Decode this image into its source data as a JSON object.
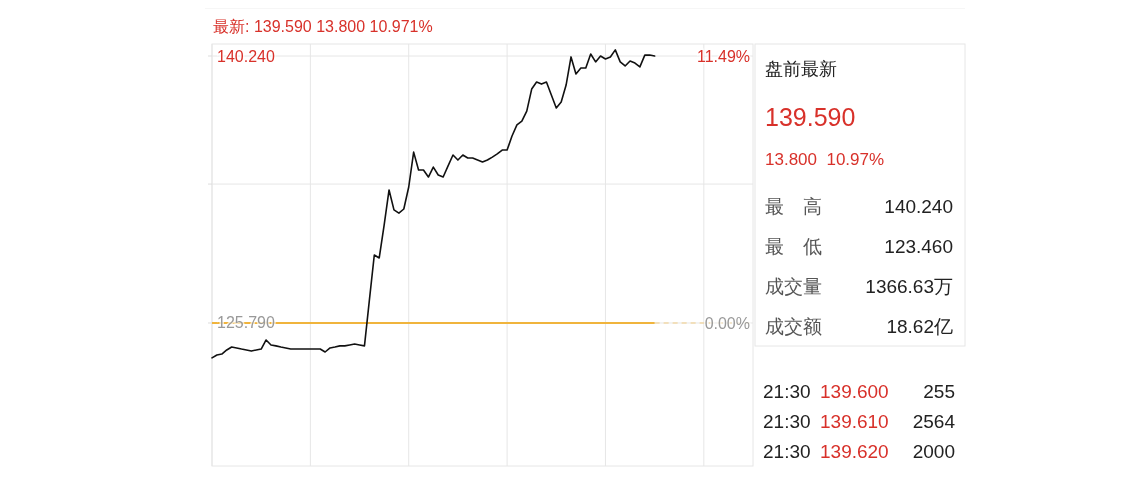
{
  "chart_data": [
    {
      "type": "line",
      "title": "最新: 139.590  13.800  10.971%",
      "categories": [
        null,
        null,
        null,
        null,
        null,
        null,
        null,
        null,
        null,
        null,
        null,
        null,
        null,
        null,
        null,
        null,
        null,
        null,
        null,
        null,
        null,
        null,
        null,
        null,
        null,
        null,
        null,
        null,
        null,
        null,
        null,
        null,
        null,
        null,
        null,
        null,
        null,
        null,
        null,
        null,
        null,
        null,
        null,
        null,
        null,
        null,
        null,
        null,
        null,
        null,
        null,
        null,
        null,
        null,
        null,
        null,
        null,
        null,
        null,
        null,
        null,
        null,
        null,
        null,
        null,
        null,
        null,
        null,
        null,
        null,
        null,
        null,
        null,
        null,
        null,
        null,
        null,
        null,
        null,
        null,
        null,
        null,
        null,
        null,
        null,
        null,
        null,
        null,
        null,
        null,
        null,
        null,
        null,
        null,
        null,
        null,
        null,
        null,
        null,
        null,
        null,
        null,
        null,
        null,
        null,
        null,
        null,
        null,
        null,
        null
      ],
      "series": [
        {
          "color": "#111111",
          "values": [
            123.9,
            124.06,
            124.11,
            124.33,
            124.49,
            124.44,
            124.38,
            124.33,
            124.27,
            124.33,
            124.38,
            124.87,
            124.6,
            124.55,
            124.49,
            124.44,
            124.38,
            124.38,
            124.38,
            124.38,
            124.38,
            124.38,
            124.38,
            124.22,
            124.44,
            124.49,
            124.55,
            124.55,
            124.6,
            124.65,
            124.6,
            124.55,
            127.03,
            129.47,
            129.31,
            131.09,
            132.99,
            131.91,
            131.74,
            131.96,
            133.15,
            135.04,
            134.07,
            134.07,
            133.69,
            134.23,
            133.8,
            133.69,
            134.29,
            134.88,
            134.61,
            134.88,
            134.72,
            134.72,
            134.61,
            134.5,
            134.61,
            134.77,
            134.94,
            135.15,
            135.15,
            135.91,
            136.51,
            136.72,
            137.26,
            138.45,
            138.83,
            138.72,
            138.83,
            138.13,
            137.43,
            137.75,
            138.67,
            140.19,
            139.27,
            139.59,
            139.59,
            140.35,
            139.92,
            140.24,
            140.08,
            140.19,
            140.57,
            139.92,
            139.7,
            139.97,
            139.86,
            139.65,
            140.29,
            140.29,
            140.24,
            null,
            null,
            null,
            null,
            null,
            null,
            null,
            null,
            null,
            null,
            null,
            null,
            null,
            null,
            null,
            null,
            null,
            null,
            null
          ]
        }
      ],
      "ylim": [
        118.05,
        140.89
      ],
      "yticks": [
        {
          "value": 140.24,
          "label": "140.240"
        },
        {
          "value": 133.31,
          "label": null
        },
        {
          "value": 125.79,
          "label": "125.790"
        }
      ],
      "y2lim": [
        -6.15,
        12.01
      ],
      "y2ticks": [
        {
          "value": 11.49,
          "label": "11.49%"
        },
        {
          "value": 0,
          "label": "0.00%"
        }
      ],
      "ref_lines": [
        {
          "axis": "y",
          "value": 125.79,
          "color": "#f0b43c"
        }
      ],
      "grid": true
    },
    {
      "type": "other",
      "title": "盘前最新",
      "annotations": [
        "139.590",
        "13.800  10.97%",
        "最　高 140.240",
        "最　低 123.460",
        "成交量 1366.63万",
        "成交额 18.62亿",
        "21:30 139.600 255",
        "21:30 139.610 2564",
        "21:30 139.620 2000"
      ]
    }
  ]
}
